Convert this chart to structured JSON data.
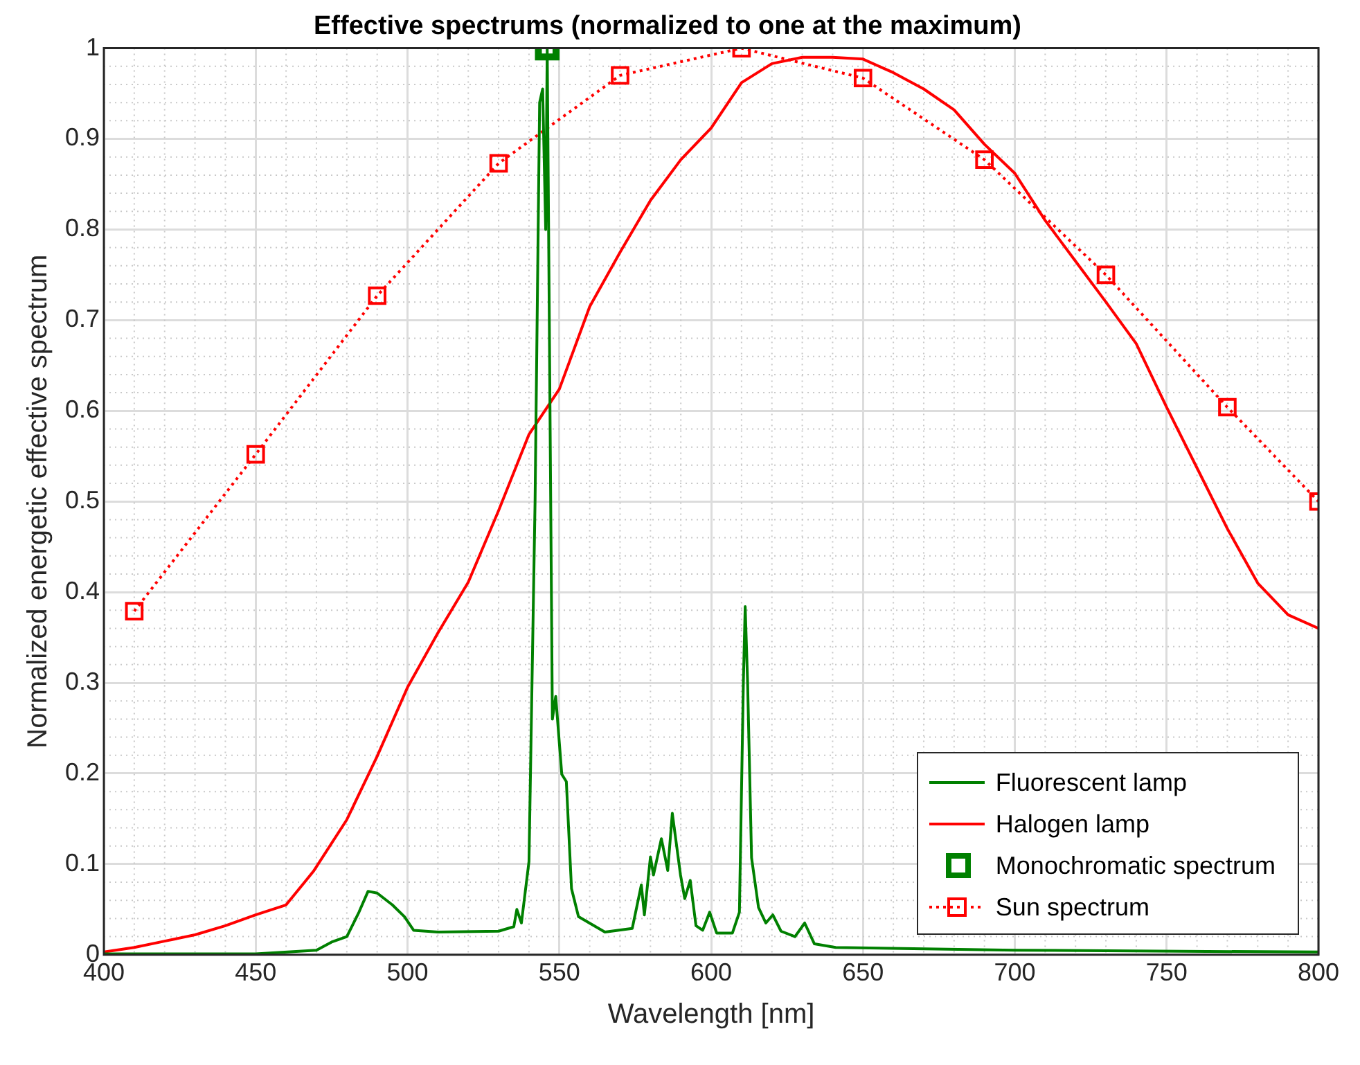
{
  "chart_data": {
    "type": "line",
    "title": "Effective spectrums (normalized to one at the maximum)",
    "xlabel": "Wavelength [nm]",
    "ylabel": "Normalized energetic effective spectrum",
    "xlim": [
      400,
      800
    ],
    "xticks": [
      400,
      450,
      500,
      550,
      600,
      650,
      700,
      750,
      800
    ],
    "ylim": [
      0,
      1
    ],
    "yticks": [
      0,
      0.1,
      0.2,
      0.3,
      0.4,
      0.5,
      0.6,
      0.7,
      0.8,
      0.9,
      1
    ],
    "grid": true,
    "legend": "bottom right",
    "series": [
      {
        "name": "Fluorescent lamp",
        "color": "#008000",
        "marker": "none",
        "line_style": "solid",
        "x": [
          400,
          450,
          470,
          475,
          480,
          484,
          487,
          490,
          495,
          499,
          502,
          510,
          530,
          535,
          536,
          537.5,
          540,
          542,
          543.5,
          544.5,
          545.5,
          546,
          547.7,
          548.8,
          550.8,
          552.3,
          554,
          556.3,
          565,
          574,
          577,
          578,
          580,
          581,
          583.6,
          585.7,
          587.2,
          589.9,
          591.3,
          593.1,
          595,
          597.2,
          599.5,
          601.8,
          607,
          609.3,
          610.6,
          611.2,
          612,
          613.3,
          615.6,
          618,
          620.3,
          623,
          627.6,
          630.8,
          634,
          641,
          700,
          800
        ],
        "values": [
          0.001,
          0.001,
          0.005,
          0.014,
          0.02,
          0.047,
          0.07,
          0.068,
          0.055,
          0.042,
          0.027,
          0.025,
          0.026,
          0.031,
          0.05,
          0.035,
          0.103,
          0.5,
          0.94,
          0.955,
          0.8,
          1,
          0.26,
          0.285,
          0.199,
          0.191,
          0.073,
          0.042,
          0.025,
          0.029,
          0.077,
          0.044,
          0.108,
          0.088,
          0.128,
          0.093,
          0.156,
          0.088,
          0.062,
          0.082,
          0.032,
          0.027,
          0.047,
          0.024,
          0.024,
          0.047,
          0.3,
          0.384,
          0.3,
          0.107,
          0.052,
          0.035,
          0.044,
          0.026,
          0.02,
          0.035,
          0.012,
          0.008,
          0.005,
          0.003
        ]
      },
      {
        "name": "Halogen lamp",
        "color": "#ff0000",
        "marker": "none",
        "line_style": "solid",
        "x": [
          400,
          410,
          420,
          430,
          440,
          450,
          460,
          469,
          480,
          490,
          500,
          510,
          520,
          530,
          540,
          550,
          560,
          570,
          580,
          590,
          600,
          610,
          620,
          630,
          640,
          650,
          660,
          670,
          680,
          690,
          700,
          710,
          720,
          730,
          740,
          750,
          760,
          770,
          780,
          790,
          800
        ],
        "values": [
          0.003,
          0.008,
          0.015,
          0.022,
          0.032,
          0.044,
          0.055,
          0.092,
          0.149,
          0.219,
          0.295,
          0.355,
          0.411,
          0.49,
          0.574,
          0.624,
          0.715,
          0.775,
          0.832,
          0.877,
          0.912,
          0.962,
          0.983,
          0.99,
          0.99,
          0.988,
          0.973,
          0.955,
          0.932,
          0.894,
          0.862,
          0.81,
          0.765,
          0.72,
          0.674,
          0.604,
          0.537,
          0.47,
          0.41,
          0.375,
          0.36
        ]
      },
      {
        "name": "Monochromatic spectrum",
        "color": "#008000",
        "type": "scatter",
        "marker": "square",
        "x": [
          546
        ],
        "values": [
          1
        ]
      },
      {
        "name": "Sun spectrum",
        "color": "#ff0000",
        "marker": "square",
        "line_style": "dotted",
        "x": [
          410,
          450,
          490,
          530,
          570,
          610,
          650,
          690,
          730,
          770,
          800
        ],
        "values": [
          0.379,
          0.552,
          0.727,
          0.873,
          0.97,
          1,
          0.967,
          0.877,
          0.75,
          0.604,
          0.5
        ]
      }
    ]
  }
}
